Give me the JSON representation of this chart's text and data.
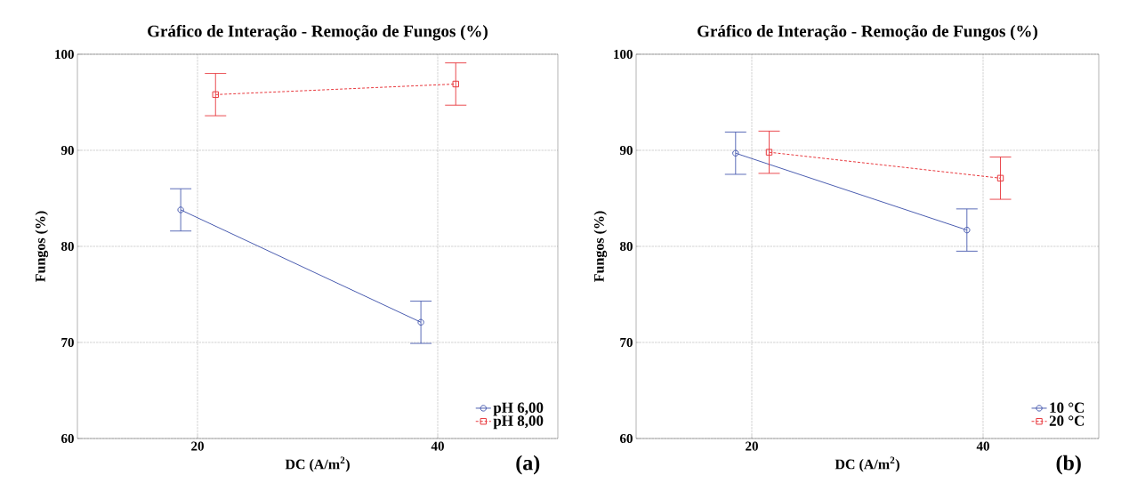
{
  "chart_data": [
    {
      "type": "line",
      "title": "Gráfico de Interação - Remoção de Fungos (%)",
      "xlabel": "DC (A/m$^{2}$)",
      "ylabel": "Fungos (%)",
      "xlim": [
        10,
        50
      ],
      "ylim": [
        60,
        100
      ],
      "xticks": [
        20,
        40
      ],
      "yticks": [
        60,
        70,
        80,
        90,
        100
      ],
      "grid": true,
      "legend": "bottom right",
      "annotations": [
        "(a)"
      ],
      "series": [
        {
          "name": "pH 6,00",
          "color": "#4a5cb0",
          "x": [
            18.6,
            38.6
          ],
          "values": [
            83.8,
            72.1
          ],
          "errors": [
            2.2,
            2.2
          ],
          "marker": "circle",
          "line_style": "solid"
        },
        {
          "name": "pH 8,00",
          "color": "#e8383d",
          "x": [
            21.5,
            41.5
          ],
          "values": [
            95.8,
            96.9
          ],
          "errors": [
            2.2,
            2.2
          ],
          "marker": "square",
          "line_style": "dashed"
        }
      ]
    },
    {
      "type": "line",
      "title": "Gráfico de Interação - Remoção de Fungos (%)",
      "xlabel": "DC (A/m$^{2}$)",
      "ylabel": "Fungos (%)",
      "xlim": [
        10,
        50
      ],
      "ylim": [
        60,
        100
      ],
      "xticks": [
        20,
        40
      ],
      "yticks": [
        60,
        70,
        80,
        90,
        100
      ],
      "grid": true,
      "legend": "bottom right",
      "annotations": [
        "(b)"
      ],
      "series": [
        {
          "name": "10 °C",
          "color": "#4a5cb0",
          "x": [
            18.6,
            38.6
          ],
          "values": [
            89.7,
            81.7
          ],
          "errors": [
            2.2,
            2.2
          ],
          "marker": "circle",
          "line_style": "solid"
        },
        {
          "name": "20 °C",
          "color": "#e8383d",
          "x": [
            21.5,
            41.5
          ],
          "values": [
            89.8,
            87.1
          ],
          "errors": [
            2.2,
            2.2
          ],
          "marker": "square",
          "line_style": "dashed"
        }
      ]
    }
  ]
}
